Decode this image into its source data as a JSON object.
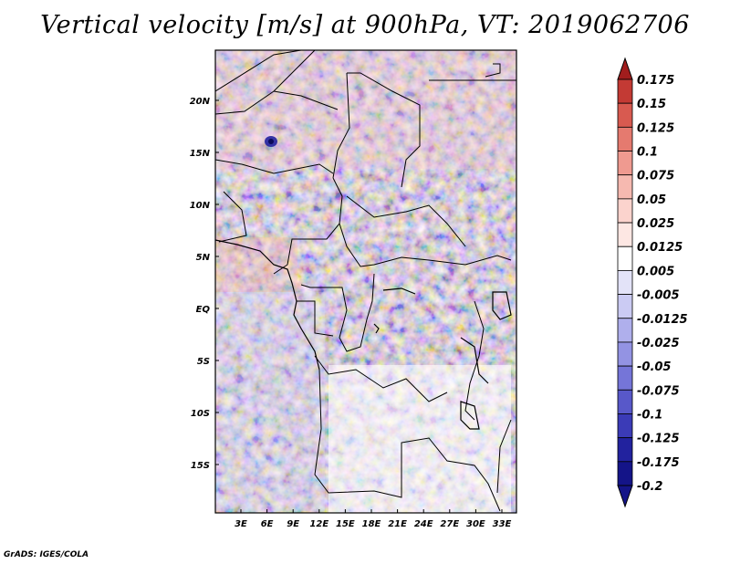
{
  "title": "Vertical velocity [m/s] at 900hPa, VT: 2019062706",
  "footer": "GrADS: IGES/COLA",
  "map": {
    "lat_labels": [
      "20N",
      "15N",
      "10N",
      "5N",
      "EQ",
      "5S",
      "10S",
      "15S"
    ],
    "lon_labels": [
      "3E",
      "6E",
      "9E",
      "12E",
      "15E",
      "18E",
      "21E",
      "24E",
      "27E",
      "30E",
      "33E"
    ]
  },
  "colorbar": {
    "labels": [
      "0.175",
      "0.15",
      "0.125",
      "0.1",
      "0.075",
      "0.05",
      "0.025",
      "0.0125",
      "0.005",
      "-0.005",
      "-0.0125",
      "-0.025",
      "-0.05",
      "-0.075",
      "-0.1",
      "-0.125",
      "-0.175",
      "-0.2"
    ],
    "colors": [
      "#a11d1d",
      "#c33a34",
      "#d85a50",
      "#e57a6f",
      "#ef9a90",
      "#f6b9b0",
      "#fbd3cd",
      "#fde7e3",
      "#ffffff",
      "#e3e3f8",
      "#cbcbf3",
      "#afafec",
      "#9393e3",
      "#7575d8",
      "#5858c9",
      "#3b3bb7",
      "#22229e",
      "#141488"
    ]
  }
}
